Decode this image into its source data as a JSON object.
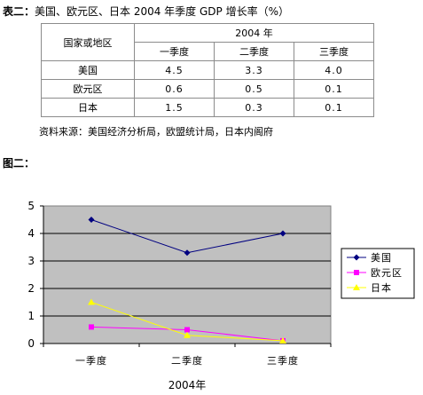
{
  "table": {
    "title_lead": "表二：",
    "title_rest": "美国、欧元区、日本 2004 年季度 GDP 增长率（%）",
    "corner_header": "国家或地区",
    "year_header": "2004 年",
    "quarters": [
      "一季度",
      "二季度",
      "三季度"
    ],
    "rows": [
      {
        "name": "美国",
        "values": [
          "4.5",
          "3.3",
          "4.0"
        ]
      },
      {
        "name": "欧元区",
        "values": [
          "0.6",
          "0.5",
          "0.1"
        ]
      },
      {
        "name": "日本",
        "values": [
          "1.5",
          "0.3",
          "0.1"
        ]
      }
    ],
    "source": "资料来源：美国经济分析局，欧盟统计局，日本内阁府"
  },
  "figure_label": "图二：",
  "chart_data": {
    "type": "line",
    "categories": [
      "一季度",
      "二季度",
      "三季度"
    ],
    "xlabel": "2004年",
    "ylabel": "",
    "ylim": [
      0,
      5
    ],
    "yticks": [
      "0",
      "1",
      "2",
      "3",
      "4",
      "5"
    ],
    "grid": true,
    "legend_position": "right",
    "series": [
      {
        "name": "美国",
        "values": [
          4.5,
          3.3,
          4.0
        ],
        "color": "#000080",
        "marker": "diamond"
      },
      {
        "name": "欧元区",
        "values": [
          0.6,
          0.5,
          0.1
        ],
        "color": "#ff00ff",
        "marker": "square"
      },
      {
        "name": "日本",
        "values": [
          1.5,
          0.3,
          0.1
        ],
        "color": "#ffff00",
        "marker": "triangle"
      }
    ],
    "plot_background": "#c0c0c0"
  }
}
